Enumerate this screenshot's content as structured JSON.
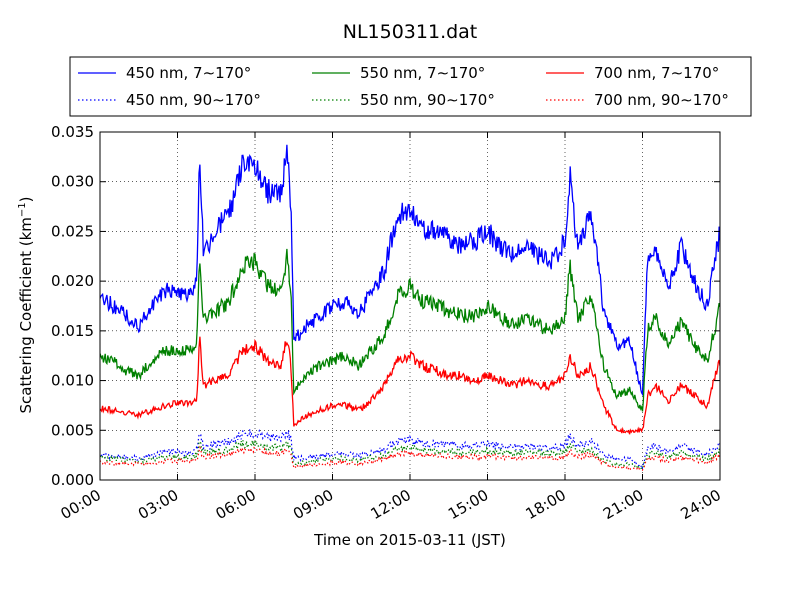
{
  "chart_data": {
    "type": "line",
    "title": "NL150311.dat",
    "xlabel": "Time on 2015-03-11 (JST)",
    "ylabel_main": "Scattering Coefficient (km",
    "ylabel_sup": "−1",
    "ylabel_tail": ")",
    "xlim": [
      0,
      24
    ],
    "ylim": [
      0,
      0.035
    ],
    "x_unit": "hours",
    "x_ticks": [
      {
        "value": 0,
        "label": "00:00"
      },
      {
        "value": 3,
        "label": "03:00"
      },
      {
        "value": 6,
        "label": "06:00"
      },
      {
        "value": 9,
        "label": "09:00"
      },
      {
        "value": 12,
        "label": "12:00"
      },
      {
        "value": 15,
        "label": "15:00"
      },
      {
        "value": 18,
        "label": "18:00"
      },
      {
        "value": 21,
        "label": "21:00"
      },
      {
        "value": 24,
        "label": "24:00"
      }
    ],
    "y_ticks": [
      {
        "value": 0.0,
        "label": "0.000"
      },
      {
        "value": 0.005,
        "label": "0.005"
      },
      {
        "value": 0.01,
        "label": "0.010"
      },
      {
        "value": 0.015,
        "label": "0.015"
      },
      {
        "value": 0.02,
        "label": "0.020"
      },
      {
        "value": 0.025,
        "label": "0.025"
      },
      {
        "value": 0.03,
        "label": "0.030"
      },
      {
        "value": 0.035,
        "label": "0.035"
      }
    ],
    "grid": true,
    "legend_position": "top",
    "x": [
      0.0,
      0.5,
      1.0,
      1.5,
      2.0,
      2.5,
      3.0,
      3.5,
      3.75,
      3.85,
      4.0,
      4.5,
      5.0,
      5.5,
      6.0,
      6.5,
      7.0,
      7.25,
      7.4,
      7.5,
      8.0,
      8.5,
      9.0,
      9.5,
      10.0,
      10.5,
      11.0,
      11.5,
      12.0,
      12.5,
      13.0,
      13.5,
      14.0,
      14.5,
      15.0,
      15.5,
      16.0,
      16.5,
      17.0,
      17.5,
      18.0,
      18.2,
      18.5,
      19.0,
      19.5,
      20.0,
      20.5,
      21.0,
      21.2,
      21.5,
      22.0,
      22.5,
      23.0,
      23.5,
      24.0
    ],
    "series": [
      {
        "name": "450 nm, 7∼170°",
        "color": "#0000ff",
        "dash": "solid",
        "values": [
          0.0185,
          0.0175,
          0.0165,
          0.0155,
          0.0175,
          0.019,
          0.019,
          0.0185,
          0.02,
          0.033,
          0.023,
          0.025,
          0.027,
          0.0315,
          0.032,
          0.029,
          0.0285,
          0.0335,
          0.027,
          0.014,
          0.0155,
          0.0165,
          0.0175,
          0.018,
          0.0165,
          0.019,
          0.021,
          0.0265,
          0.0275,
          0.0255,
          0.025,
          0.0245,
          0.0235,
          0.024,
          0.025,
          0.0235,
          0.0225,
          0.0235,
          0.0225,
          0.022,
          0.024,
          0.0305,
          0.023,
          0.0275,
          0.017,
          0.0135,
          0.014,
          0.0085,
          0.0225,
          0.0235,
          0.019,
          0.0235,
          0.02,
          0.0175,
          0.025
        ]
      },
      {
        "name": "450 nm, 90∼170°",
        "color": "#0000ff",
        "dash": "dotted",
        "values": [
          0.0025,
          0.0024,
          0.0023,
          0.0022,
          0.0025,
          0.0028,
          0.0028,
          0.0027,
          0.003,
          0.0048,
          0.0034,
          0.0036,
          0.0039,
          0.0046,
          0.0047,
          0.0043,
          0.0042,
          0.0048,
          0.0039,
          0.0021,
          0.0023,
          0.0024,
          0.0026,
          0.0027,
          0.0024,
          0.0028,
          0.0031,
          0.0038,
          0.004,
          0.0037,
          0.0036,
          0.0036,
          0.0034,
          0.0035,
          0.0036,
          0.0034,
          0.0033,
          0.0034,
          0.0033,
          0.0032,
          0.0035,
          0.0044,
          0.0034,
          0.004,
          0.0025,
          0.002,
          0.0021,
          0.0013,
          0.0032,
          0.0034,
          0.0028,
          0.0034,
          0.0029,
          0.0026,
          0.0036
        ]
      },
      {
        "name": "550 nm, 7∼170°",
        "color": "#008000",
        "dash": "solid",
        "values": [
          0.0125,
          0.012,
          0.011,
          0.0105,
          0.012,
          0.013,
          0.013,
          0.013,
          0.014,
          0.0235,
          0.016,
          0.017,
          0.018,
          0.0215,
          0.022,
          0.0195,
          0.019,
          0.0225,
          0.018,
          0.009,
          0.0105,
          0.0115,
          0.012,
          0.0125,
          0.0115,
          0.013,
          0.0145,
          0.0185,
          0.0195,
          0.018,
          0.0175,
          0.017,
          0.0165,
          0.0165,
          0.0175,
          0.0165,
          0.0155,
          0.0165,
          0.0155,
          0.015,
          0.0165,
          0.0215,
          0.016,
          0.0185,
          0.0115,
          0.0085,
          0.009,
          0.007,
          0.015,
          0.0165,
          0.0135,
          0.016,
          0.0135,
          0.012,
          0.0175
        ]
      },
      {
        "name": "550 nm, 90∼170°",
        "color": "#008000",
        "dash": "dotted",
        "values": [
          0.0022,
          0.0021,
          0.002,
          0.0019,
          0.0021,
          0.0023,
          0.0023,
          0.0023,
          0.0025,
          0.0038,
          0.0028,
          0.0029,
          0.0031,
          0.0036,
          0.0037,
          0.0033,
          0.0032,
          0.0038,
          0.0031,
          0.0016,
          0.0018,
          0.002,
          0.0021,
          0.0022,
          0.002,
          0.0023,
          0.0025,
          0.0031,
          0.0033,
          0.003,
          0.0029,
          0.0029,
          0.0028,
          0.0028,
          0.0029,
          0.0028,
          0.0027,
          0.0028,
          0.0027,
          0.0026,
          0.0028,
          0.0035,
          0.0027,
          0.0031,
          0.002,
          0.0015,
          0.0016,
          0.0012,
          0.0026,
          0.0028,
          0.0023,
          0.0027,
          0.0023,
          0.0021,
          0.0029
        ]
      },
      {
        "name": "700 nm, 7∼170°",
        "color": "#ff0000",
        "dash": "solid",
        "values": [
          0.0072,
          0.007,
          0.0068,
          0.0065,
          0.007,
          0.0075,
          0.0078,
          0.0078,
          0.008,
          0.0145,
          0.0095,
          0.01,
          0.0105,
          0.013,
          0.0135,
          0.012,
          0.0115,
          0.0145,
          0.011,
          0.0055,
          0.0065,
          0.007,
          0.0075,
          0.0075,
          0.007,
          0.008,
          0.0095,
          0.012,
          0.0125,
          0.0115,
          0.011,
          0.0105,
          0.0105,
          0.01,
          0.0105,
          0.01,
          0.0095,
          0.01,
          0.0095,
          0.0095,
          0.0105,
          0.0125,
          0.0105,
          0.0115,
          0.0075,
          0.005,
          0.0048,
          0.005,
          0.0085,
          0.0095,
          0.008,
          0.0095,
          0.0085,
          0.0075,
          0.012
        ]
      },
      {
        "name": "700 nm, 90∼170°",
        "color": "#ff0000",
        "dash": "dotted",
        "values": [
          0.0018,
          0.0017,
          0.0017,
          0.0016,
          0.0017,
          0.0019,
          0.0019,
          0.0019,
          0.002,
          0.0031,
          0.0023,
          0.0024,
          0.0025,
          0.003,
          0.0031,
          0.0027,
          0.0027,
          0.0031,
          0.0025,
          0.0013,
          0.0015,
          0.0016,
          0.0017,
          0.0018,
          0.0016,
          0.0019,
          0.0021,
          0.0026,
          0.0027,
          0.0025,
          0.0024,
          0.0024,
          0.0023,
          0.0023,
          0.0024,
          0.0023,
          0.0022,
          0.0023,
          0.0022,
          0.0022,
          0.0023,
          0.0028,
          0.0023,
          0.0026,
          0.0017,
          0.0012,
          0.0012,
          0.001,
          0.0021,
          0.0023,
          0.0019,
          0.0022,
          0.002,
          0.0018,
          0.0025
        ]
      }
    ]
  }
}
